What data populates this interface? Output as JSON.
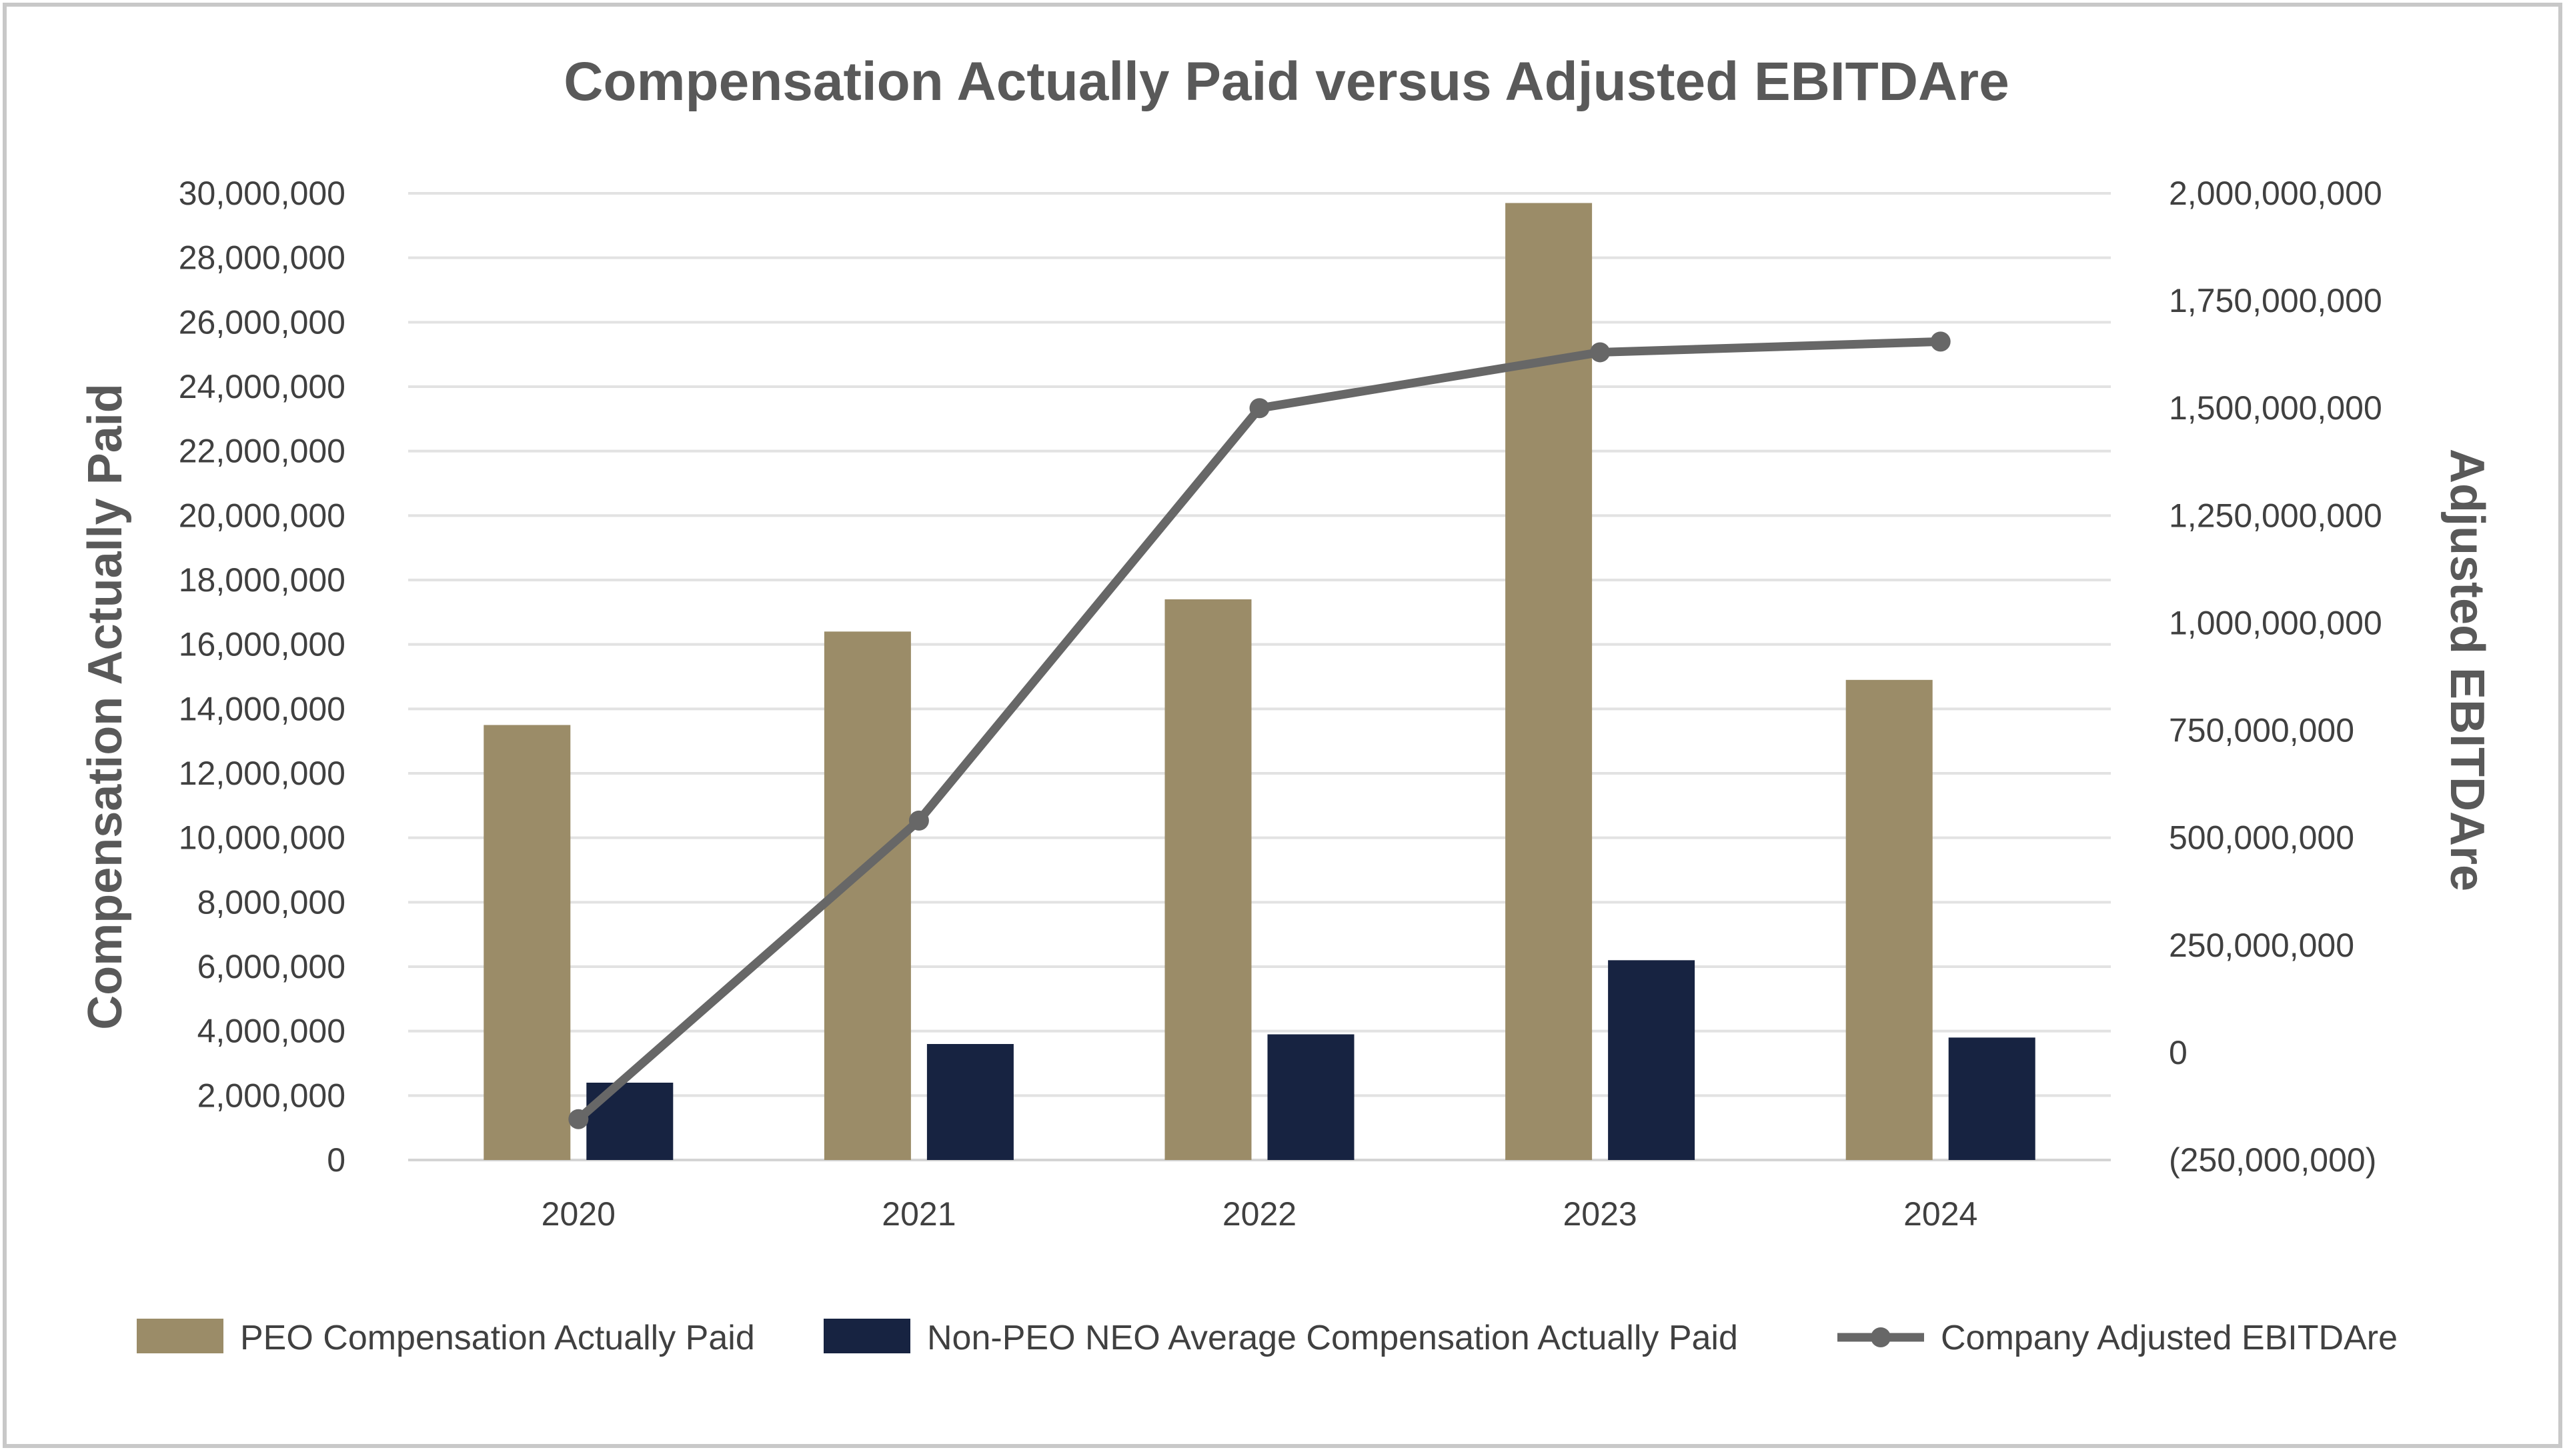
{
  "chart_data": {
    "type": "bar",
    "title": "Compensation Actually Paid versus Adjusted EBITDAre",
    "categories": [
      "2020",
      "2021",
      "2022",
      "2023",
      "2024"
    ],
    "y_left": {
      "label": "Compensation Actually Paid",
      "range": [
        0,
        30000000
      ],
      "ticks": [
        "0",
        "2,000,000",
        "4,000,000",
        "6,000,000",
        "8,000,000",
        "10,000,000",
        "12,000,000",
        "14,000,000",
        "16,000,000",
        "18,000,000",
        "20,000,000",
        "22,000,000",
        "24,000,000",
        "26,000,000",
        "28,000,000",
        "30,000,000"
      ]
    },
    "y_right": {
      "label": "Adjusted EBITDAre",
      "range": [
        -250000000,
        2000000000
      ],
      "ticks": [
        "(250,000,000)",
        "0",
        "250,000,000",
        "500,000,000",
        "750,000,000",
        "1,000,000,000",
        "1,250,000,000",
        "1,500,000,000",
        "1,750,000,000",
        "2,000,000,000"
      ]
    },
    "series": [
      {
        "name": "PEO Compensation Actually Paid",
        "type": "bar",
        "axis": "left",
        "color": "#9b8c68",
        "values": [
          13500000,
          16400000,
          17400000,
          29700000,
          14900000
        ]
      },
      {
        "name": "Non-PEO NEO Average Compensation Actually Paid",
        "type": "bar",
        "axis": "left",
        "color": "#172341",
        "values": [
          2400000,
          3600000,
          3900000,
          6200000,
          3800000
        ]
      },
      {
        "name": "Company Adjusted EBITDAre",
        "type": "line",
        "axis": "right",
        "color": "#676767",
        "values": [
          -155000000,
          540000000,
          1500000000,
          1630000000,
          1655000000
        ]
      }
    ],
    "grid": true,
    "legend_position": "bottom"
  }
}
